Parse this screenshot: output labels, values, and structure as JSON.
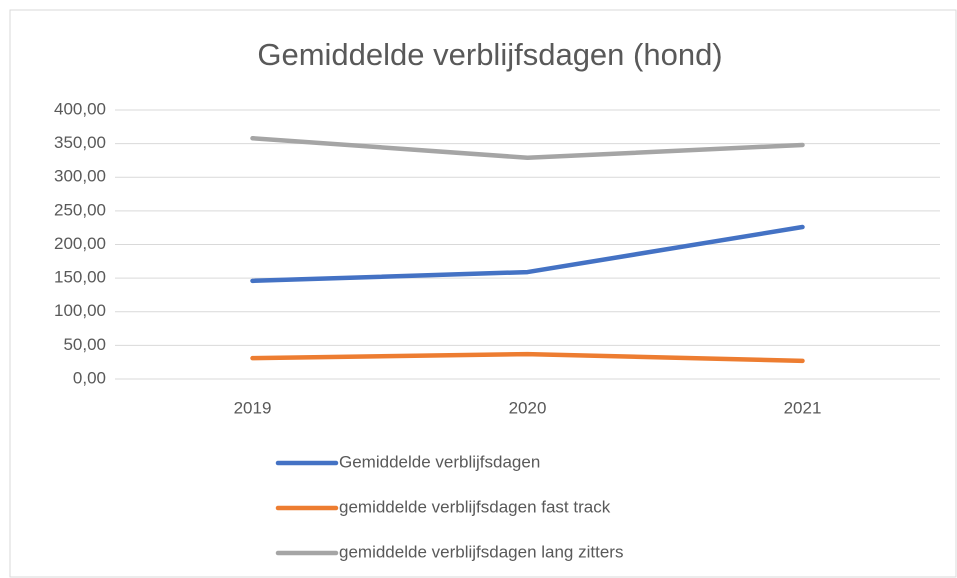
{
  "chart_data": {
    "type": "line",
    "title": "Gemiddelde verblijfsdagen (hond)",
    "categories": [
      "2019",
      "2020",
      "2021"
    ],
    "series": [
      {
        "name": "Gemiddelde verblijfsdagen",
        "color": "#4472c4",
        "values": [
          146,
          159,
          226
        ]
      },
      {
        "name": "gemiddelde verblijfsdagen fast track",
        "color": "#ed7d31",
        "values": [
          31,
          37,
          27
        ]
      },
      {
        "name": "gemiddelde verblijfsdagen lang zitters",
        "color": "#a5a5a5",
        "values": [
          358,
          329,
          348
        ]
      }
    ],
    "ylim": [
      0,
      400
    ],
    "yticks": [
      {
        "value": 0,
        "label": "0,00"
      },
      {
        "value": 50,
        "label": "50,00"
      },
      {
        "value": 100,
        "label": "100,00"
      },
      {
        "value": 150,
        "label": "150,00"
      },
      {
        "value": 200,
        "label": "200,00"
      },
      {
        "value": 250,
        "label": "250,00"
      },
      {
        "value": 300,
        "label": "300,00"
      },
      {
        "value": 350,
        "label": "350,00"
      },
      {
        "value": 400,
        "label": "400,00"
      }
    ],
    "grid": true,
    "legend": "bottom"
  }
}
